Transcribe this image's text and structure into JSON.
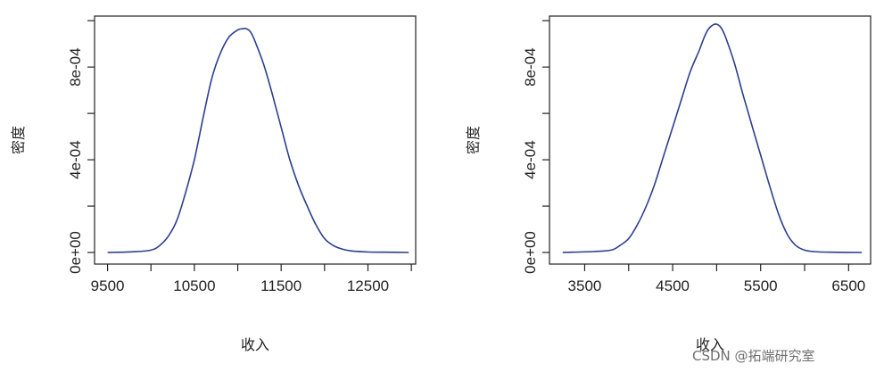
{
  "chart_data": [
    {
      "type": "line",
      "title": "",
      "xlabel": "收入",
      "ylabel": "密度",
      "xlim": [
        9350,
        13050
      ],
      "ylim": [
        -5e-05,
        0.00102
      ],
      "x_ticks": [
        9500,
        10000,
        10500,
        11000,
        11500,
        12000,
        12500,
        13000
      ],
      "x_tick_labels": [
        "9500",
        "",
        "10500",
        "",
        "11500",
        "",
        "12500",
        ""
      ],
      "y_ticks": [
        0,
        0.0002,
        0.0004,
        0.0006,
        0.0008,
        0.001
      ],
      "y_tick_labels": [
        "0e+00",
        "",
        "4e-04",
        "",
        "8e-04",
        ""
      ],
      "grid": false,
      "color": "#2c3e91",
      "series": [
        {
          "x": [
            9500,
            9800,
            10000,
            10100,
            10200,
            10300,
            10400,
            10500,
            10600,
            10700,
            10800,
            10900,
            11000,
            11050,
            11100,
            11150,
            11200,
            11300,
            11400,
            11500,
            11600,
            11700,
            11800,
            11900,
            12000,
            12100,
            12200,
            12300,
            12500,
            12700,
            12970
          ],
          "y": [
            0.0,
            3e-06,
            1e-05,
            3e-05,
            7e-05,
            0.00014,
            0.00026,
            0.0004,
            0.00058,
            0.00075,
            0.00086,
            0.00093,
            0.00096,
            0.000965,
            0.000965,
            0.00095,
            0.00091,
            0.00081,
            0.00068,
            0.00054,
            0.0004,
            0.00029,
            0.0002,
            0.00012,
            6e-05,
            3e-05,
            1.5e-05,
            7e-06,
            2e-06,
            1e-06,
            0.0
          ]
        }
      ]
    },
    {
      "type": "line",
      "title": "",
      "xlabel": "收入",
      "ylabel": "密度",
      "xlim": [
        3100,
        6750
      ],
      "ylim": [
        -5e-05,
        0.00102
      ],
      "x_ticks": [
        3500,
        4000,
        4500,
        5000,
        5500,
        6000,
        6500
      ],
      "x_tick_labels": [
        "3500",
        "",
        "4500",
        "",
        "5500",
        "",
        "6500"
      ],
      "y_ticks": [
        0,
        0.0002,
        0.0004,
        0.0006,
        0.0008,
        0.001
      ],
      "y_tick_labels": [
        "0e+00",
        "",
        "4e-04",
        "",
        "8e-04",
        ""
      ],
      "grid": false,
      "color": "#2c3e91",
      "series": [
        {
          "x": [
            3250,
            3600,
            3800,
            3900,
            4000,
            4100,
            4200,
            4300,
            4400,
            4500,
            4600,
            4700,
            4800,
            4850,
            4900,
            4950,
            5000,
            5050,
            5100,
            5200,
            5300,
            5400,
            5500,
            5600,
            5700,
            5800,
            5900,
            6000,
            6100,
            6300,
            6650
          ],
          "y": [
            0.0,
            4e-06,
            1e-05,
            3e-05,
            6e-05,
            0.00012,
            0.0002,
            0.0003,
            0.00042,
            0.00054,
            0.00066,
            0.00078,
            0.00087,
            0.00092,
            0.00096,
            0.00098,
            0.000985,
            0.00097,
            0.00093,
            0.00082,
            0.00068,
            0.00055,
            0.00042,
            0.00029,
            0.00017,
            8e-05,
            3e-05,
            1e-05,
            4e-06,
            1e-06,
            0.0
          ]
        }
      ]
    }
  ],
  "watermark": "CSDN @拓端研究室"
}
